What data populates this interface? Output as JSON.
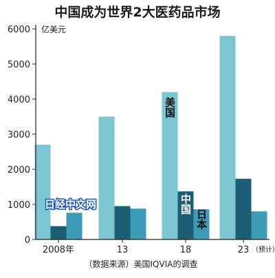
{
  "title": "中国成为世界2大医药品市场",
  "unit": "亿美元",
  "source": "（数据来源）美国IQVIA的调查",
  "watermark": "日经中文网",
  "colors": {
    "us": "#7cc6d2",
    "china": "#1c5e73",
    "japan": "#3d9bb5",
    "axis": "#222222"
  },
  "chart_data": {
    "type": "bar",
    "title": "中国成为世界2大医药品市场",
    "ylabel": "亿美元",
    "xlabel": "",
    "ylim": [
      0,
      6000
    ],
    "yticks": [
      "0",
      "1000",
      "2000",
      "3000",
      "4000",
      "5000",
      "6000"
    ],
    "categories": [
      "2008年",
      "13",
      "18",
      "23"
    ],
    "category_note": "（预计）",
    "grid": false,
    "legend": "inline labels",
    "series": [
      {
        "name": "美国",
        "values": [
          2700,
          3500,
          4200,
          5800
        ]
      },
      {
        "name": "中国",
        "values": [
          380,
          950,
          1370,
          1730
        ]
      },
      {
        "name": "日本",
        "values": [
          760,
          880,
          860,
          800
        ]
      }
    ]
  }
}
